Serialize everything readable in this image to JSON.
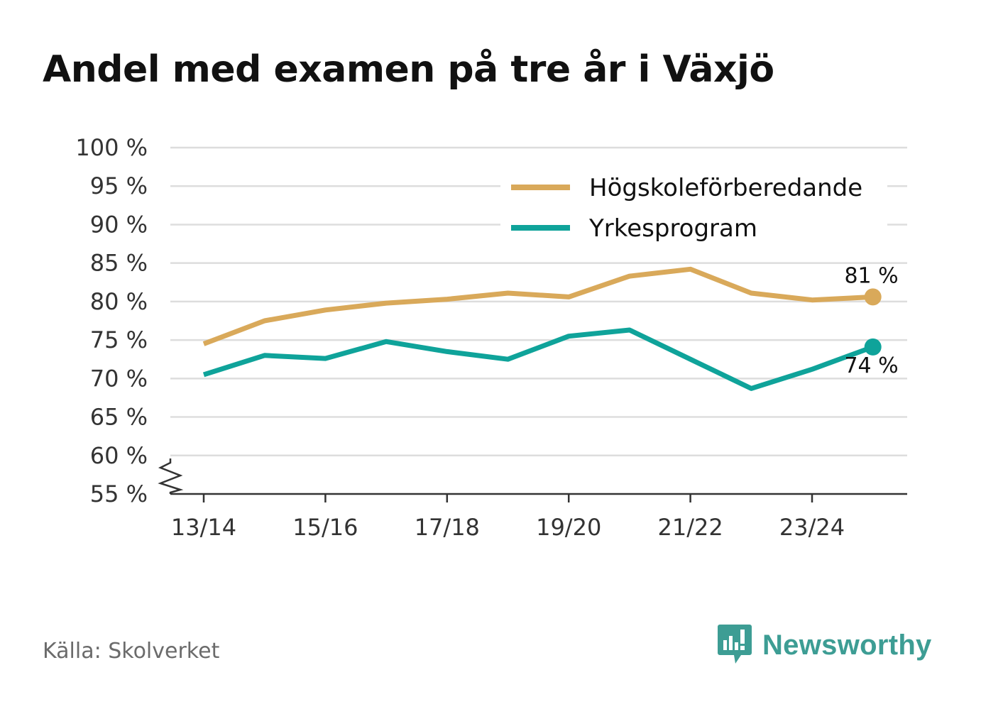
{
  "title": "Andel med examen på tre år i Växjö",
  "source": "Källa: Skolverket",
  "brand": "Newsworthy",
  "colors": {
    "series1": "#d9a95a",
    "series2": "#0fa39a",
    "grid": "#dddddd",
    "axis": "#333333",
    "text": "#111111",
    "muted": "#6b6b6b",
    "brand": "#3d9d94"
  },
  "chart_data": {
    "type": "line",
    "title": "Andel med examen på tre år i Växjö",
    "xlabel": "",
    "ylabel": "",
    "ylim": [
      55,
      100
    ],
    "yticks": [
      55,
      60,
      65,
      70,
      75,
      80,
      85,
      90,
      95,
      100
    ],
    "ytick_labels": [
      "55 %",
      "60 %",
      "65 %",
      "70 %",
      "75 %",
      "80 %",
      "85 %",
      "90 %",
      "95 %",
      "100 %"
    ],
    "categories": [
      "13/14",
      "14/15",
      "15/16",
      "16/17",
      "17/18",
      "18/19",
      "19/20",
      "20/21",
      "21/22",
      "22/23",
      "23/24",
      "24/25"
    ],
    "xtick_labels": [
      "13/14",
      "15/16",
      "17/18",
      "19/20",
      "21/22",
      "23/24"
    ],
    "grid": true,
    "axis_break": true,
    "legend_position": "top-right",
    "series": [
      {
        "name": "Högskoleförberedande",
        "color": "#d9a95a",
        "values": [
          74.5,
          77.5,
          78.9,
          79.8,
          80.3,
          81.1,
          80.6,
          83.3,
          84.2,
          81.1,
          80.2,
          80.6
        ],
        "end_label": "81 %"
      },
      {
        "name": "Yrkesprogram",
        "color": "#0fa39a",
        "values": [
          70.5,
          73.0,
          72.6,
          74.8,
          73.5,
          72.5,
          75.5,
          76.3,
          72.5,
          68.7,
          71.2,
          74.1
        ],
        "end_label": "74 %"
      }
    ]
  }
}
